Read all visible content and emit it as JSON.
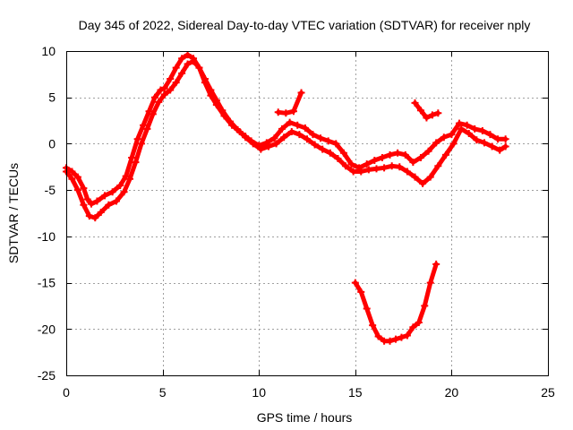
{
  "chart_data": {
    "type": "scatter",
    "title": "Day 345 of 2022, Sidereal Day-to-day VTEC variation (SDTVAR) for receiver nply",
    "xlabel": "GPS time / hours",
    "ylabel": "SDTVAR / TECUs",
    "xlim": [
      0,
      25
    ],
    "ylim": [
      -25,
      10
    ],
    "xticks": [
      0,
      5,
      10,
      15,
      20,
      25
    ],
    "yticks": [
      10,
      5,
      0,
      -5,
      -10,
      -15,
      -20,
      -25
    ],
    "grid": true,
    "marker": "+",
    "color": "#ff0000",
    "series": [
      {
        "name": "track-a",
        "x": [
          0.0,
          0.3,
          0.6,
          0.9,
          1.1,
          1.3,
          1.6,
          2.0,
          2.4,
          2.8,
          3.1,
          3.4,
          3.7,
          4.0,
          4.3,
          4.6,
          4.9,
          5.1,
          5.4,
          5.7,
          6.0,
          6.3,
          6.6,
          6.9,
          7.2,
          7.5,
          7.8,
          8.2,
          8.6,
          9.0,
          9.3,
          9.6,
          10.0,
          10.4,
          10.8,
          11.2,
          11.6,
          12.0,
          12.4,
          12.8,
          13.2,
          13.6,
          14.0,
          14.4,
          14.8,
          15.2,
          15.6,
          16.0,
          16.4,
          16.8,
          17.2,
          17.6,
          18.0,
          18.4,
          18.8,
          19.2,
          19.6,
          20.0,
          20.4,
          20.8,
          21.2,
          21.6,
          22.0,
          22.4,
          22.8
        ],
        "y": [
          -2.6,
          -3.0,
          -3.6,
          -4.8,
          -6.0,
          -6.5,
          -6.2,
          -5.6,
          -5.2,
          -4.5,
          -3.5,
          -1.5,
          0.5,
          2.0,
          3.5,
          5.0,
          5.8,
          6.0,
          7.0,
          8.2,
          9.2,
          9.6,
          9.2,
          8.2,
          6.6,
          5.2,
          4.2,
          3.0,
          2.0,
          1.3,
          0.8,
          0.3,
          -0.2,
          0.1,
          0.6,
          1.6,
          2.3,
          2.0,
          1.7,
          1.0,
          0.6,
          0.3,
          0.0,
          -1.0,
          -2.2,
          -2.6,
          -2.2,
          -1.8,
          -1.5,
          -1.2,
          -1.0,
          -1.2,
          -2.0,
          -1.5,
          -0.8,
          0.1,
          0.7,
          1.0,
          2.2,
          2.0,
          1.6,
          1.4,
          1.0,
          0.5,
          0.5
        ]
      },
      {
        "name": "track-b",
        "x": [
          0.0,
          0.3,
          0.6,
          0.9,
          1.2,
          1.5,
          1.8,
          2.2,
          2.6,
          3.0,
          3.3,
          3.6,
          3.9,
          4.2,
          4.5,
          4.8,
          5.1,
          5.4,
          5.7,
          6.0,
          6.3,
          6.6,
          6.9,
          7.2,
          7.5,
          7.8,
          8.1,
          8.5,
          8.9,
          9.3,
          9.7,
          10.1,
          10.5,
          10.9,
          11.3,
          11.7,
          12.1,
          12.5,
          12.9,
          13.3,
          13.7,
          14.1,
          14.5,
          14.9,
          15.3,
          15.7,
          16.1,
          16.5,
          16.9,
          17.3,
          17.7,
          18.1,
          18.5,
          18.9,
          19.3,
          19.7,
          20.1,
          20.5,
          20.9,
          21.3,
          21.7,
          22.1,
          22.5,
          22.8
        ],
        "y": [
          -3.0,
          -3.8,
          -5.0,
          -6.6,
          -7.8,
          -8.0,
          -7.4,
          -6.6,
          -6.2,
          -5.2,
          -3.8,
          -2.0,
          0.0,
          1.6,
          3.2,
          4.5,
          5.3,
          5.8,
          6.6,
          7.6,
          8.6,
          8.9,
          8.2,
          7.0,
          5.8,
          4.7,
          3.6,
          2.4,
          1.5,
          0.7,
          0.0,
          -0.6,
          -0.3,
          0.0,
          0.7,
          1.3,
          1.0,
          0.5,
          -0.1,
          -0.6,
          -1.0,
          -1.6,
          -2.4,
          -3.0,
          -3.0,
          -2.8,
          -2.7,
          -2.6,
          -2.4,
          -2.5,
          -3.0,
          -3.6,
          -4.3,
          -3.6,
          -2.4,
          -1.2,
          0.0,
          1.6,
          1.1,
          0.4,
          0.1,
          -0.3,
          -0.7,
          -0.3
        ]
      },
      {
        "name": "segment-12h",
        "x": [
          11.0,
          11.4,
          11.8,
          12.2
        ],
        "y": [
          3.4,
          3.3,
          3.5,
          5.5
        ]
      },
      {
        "name": "segment-18h",
        "x": [
          18.1,
          18.4,
          18.7,
          19.0,
          19.3
        ],
        "y": [
          4.4,
          3.6,
          2.8,
          3.1,
          3.3
        ]
      },
      {
        "name": "segment-low",
        "x": [
          15.0,
          15.3,
          15.6,
          15.9,
          16.2,
          16.5,
          16.8,
          17.1,
          17.4,
          17.7,
          18.0,
          18.3,
          18.6,
          18.9,
          19.2
        ],
        "y": [
          -15.0,
          -16.0,
          -17.8,
          -19.6,
          -20.8,
          -21.3,
          -21.3,
          -21.1,
          -20.9,
          -20.7,
          -19.8,
          -19.3,
          -17.5,
          -15.0,
          -13.0
        ]
      }
    ]
  }
}
